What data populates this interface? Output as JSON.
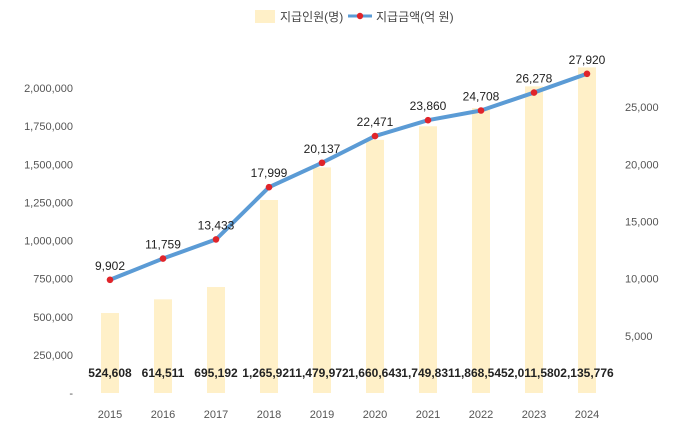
{
  "chart_data": {
    "type": "bar+line",
    "categories": [
      "2015",
      "2016",
      "2017",
      "2018",
      "2019",
      "2020",
      "2021",
      "2022",
      "2023",
      "2024"
    ],
    "series": [
      {
        "name": "지급인원(명)",
        "type": "bar",
        "axis": "left",
        "color": "#fff0c8",
        "values": [
          524608,
          614511,
          695192,
          1265921,
          1479972,
          1660643,
          1749831,
          1868545,
          2011580,
          2135776
        ],
        "labels": [
          "524,608",
          "614,511",
          "695,192",
          "1,265,921",
          "1,479,972",
          "1,660,643",
          "1,749,831",
          "1,868,545",
          "2,011,580",
          "2,135,776"
        ]
      },
      {
        "name": "지급금액(억 원)",
        "type": "line",
        "axis": "right",
        "color": "#5b9bd5",
        "marker_color": "#e0242a",
        "values": [
          9902,
          11759,
          13433,
          17999,
          20137,
          22471,
          23860,
          24708,
          26278,
          27920
        ],
        "labels": [
          "9,902",
          "11,759",
          "13,433",
          "17,999",
          "20,137",
          "22,471",
          "23,860",
          "24,708",
          "26,278",
          "27,920"
        ]
      }
    ],
    "y_left": {
      "range": [
        0,
        2250000
      ],
      "ticks": [
        0,
        250000,
        500000,
        750000,
        1000000,
        1250000,
        1500000,
        1750000,
        2000000
      ],
      "tick_labels": [
        "-",
        "250,000",
        "500,000",
        "750,000",
        "1,000,000",
        "1,250,000",
        "1,500,000",
        "1,750,000",
        "2,000,000"
      ]
    },
    "y_right": {
      "range": [
        0,
        30000
      ],
      "ticks": [
        5000,
        10000,
        15000,
        20000,
        25000
      ],
      "tick_labels": [
        "5,000",
        "10,000",
        "15,000",
        "20,000",
        "25,000"
      ]
    },
    "legend_position": "top",
    "grid": false
  }
}
